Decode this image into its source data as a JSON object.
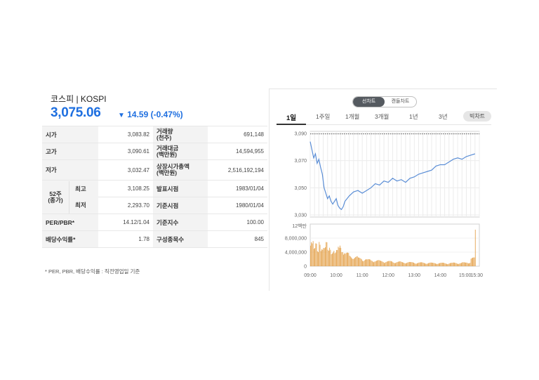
{
  "index": {
    "title": "코스피 | KOSPI",
    "price": "3,075.06",
    "change_arrow": "▼",
    "change": "14.59 (-0.47%)"
  },
  "stats": {
    "open_label": "시가",
    "open": "3,083.82",
    "volume_label_1": "거래량",
    "volume_label_2": "(천주)",
    "volume": "691,148",
    "high_label": "고가",
    "high": "3,090.61",
    "trade_value_label_1": "거래대금",
    "trade_value_label_2": "(백만원)",
    "trade_value": "14,594,955",
    "low_label": "저가",
    "low": "3,032.47",
    "market_cap_label_1": "상장시가총액",
    "market_cap_label_2": "(백만원)",
    "market_cap": "2,516,192,194",
    "w52_label_1": "52주",
    "w52_label_2": "(종가)",
    "w52_high_label": "최고",
    "w52_high": "3,108.25",
    "w52_low_label": "최저",
    "w52_low": "2,293.70",
    "announce_label": "발표시점",
    "announce": "1983/01/04",
    "base_time_label": "기준시점",
    "base_time": "1980/01/04",
    "per_pbr_label": "PER/PBR*",
    "per_pbr": "14.12/1.04",
    "base_index_label": "기준지수",
    "base_index": "100.00",
    "dividend_label": "배당수익률*",
    "dividend": "1.78",
    "constituents_label": "구성종목수",
    "constituents": "845",
    "note": "* PER, PBR, 배당수익률 : 직전영업일 기준"
  },
  "chart_toggle": {
    "line": "선차트",
    "candle": "캔들차트"
  },
  "period_tabs": [
    "1일",
    "1주일",
    "1개월",
    "3개월",
    "1년",
    "3년"
  ],
  "big_chart_button": "빅차트",
  "chart_data": {
    "type": "line",
    "price_yticks": [
      "3,090",
      "3,070",
      "3,050",
      "3,030"
    ],
    "price_ylim": [
      3030,
      3090
    ],
    "reference_line": 3089.65,
    "volume_unit": "12백만",
    "volume_yticks": [
      "8,000,000",
      "4,000,000",
      "0"
    ],
    "volume_ylim": [
      0,
      12000000
    ],
    "x_ticks": [
      "09:00",
      "10:00",
      "11:00",
      "12:00",
      "13:00",
      "14:00",
      "15:00",
      "15:30"
    ],
    "series": [
      {
        "x": [
          "09:00",
          "09:04",
          "09:08",
          "09:12",
          "09:16",
          "09:20",
          "09:24",
          "09:28",
          "09:32",
          "09:36",
          "09:40",
          "09:44",
          "09:48",
          "09:52",
          "09:56",
          "10:00",
          "10:04",
          "10:08",
          "10:12",
          "10:16",
          "10:20",
          "10:30",
          "10:40",
          "10:50",
          "11:00",
          "11:10",
          "11:20",
          "11:30",
          "11:40",
          "11:50",
          "12:00",
          "12:10",
          "12:20",
          "12:30",
          "12:40",
          "12:50",
          "13:00",
          "13:10",
          "13:20",
          "13:30",
          "13:40",
          "13:50",
          "14:00",
          "14:10",
          "14:20",
          "14:30",
          "14:40",
          "14:50",
          "15:00",
          "15:10",
          "15:20"
        ],
        "values": [
          3084,
          3078,
          3072,
          3075,
          3068,
          3071,
          3065,
          3060,
          3050,
          3046,
          3042,
          3044,
          3040,
          3038,
          3040,
          3042,
          3037,
          3035,
          3034,
          3036,
          3040,
          3044,
          3047,
          3048,
          3046,
          3048,
          3050,
          3053,
          3052,
          3055,
          3054,
          3057,
          3055,
          3056,
          3054,
          3057,
          3058,
          3060,
          3061,
          3062,
          3063,
          3066,
          3067,
          3067,
          3069,
          3071,
          3072,
          3071,
          3073,
          3074,
          3075
        ]
      }
    ],
    "volume_values": [
      7800000,
      6500000,
      4200000,
      5200000,
      3600000,
      6800000,
      5600000,
      4800000,
      4400000,
      5500000,
      3900000,
      5100000,
      4300000,
      4100000,
      3200000,
      3700000,
      4600000,
      5600000,
      4900000,
      3500000,
      3100000,
      2600000,
      2300000,
      2000000,
      1800000,
      1600000,
      1500000,
      1400000,
      1300000,
      1200000,
      1200000,
      1100000,
      1100000,
      1000000,
      1000000,
      950000,
      900000,
      900000,
      850000,
      850000,
      800000,
      800000,
      800000,
      750000,
      800000,
      850000,
      800000,
      900000,
      1000000,
      2000000,
      10400000
    ]
  }
}
